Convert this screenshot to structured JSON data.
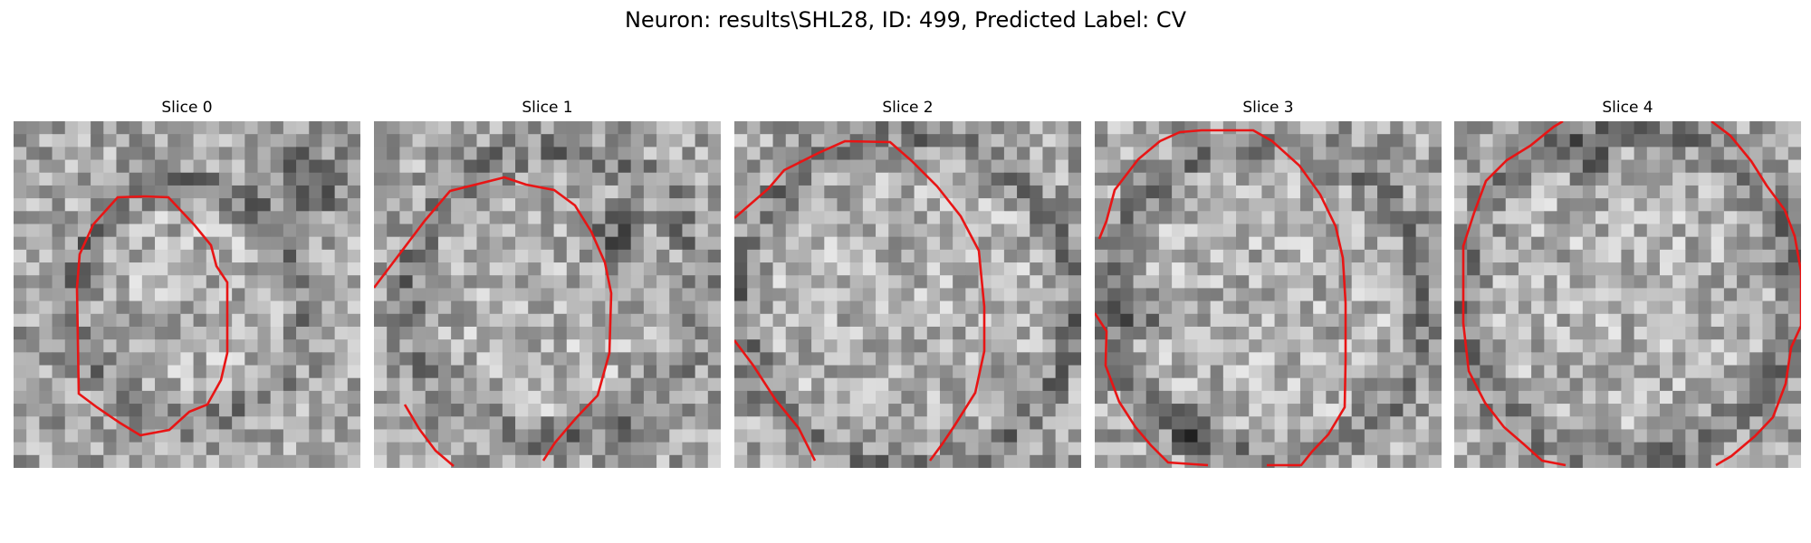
{
  "figure": {
    "title": "Neuron: results\\SHL28, ID: 499, Predicted Label: CV"
  },
  "panels": [
    {
      "title": "Slice 0",
      "seed": 11,
      "brightness": [
        "xxxxxxxxxxxxxxxxxxxxxxxxxxx",
        "xxxxxxxxxxxxxxxxxxxxxxxxxxx"
      ]
    },
    {
      "title": "Slice 1",
      "seed": 23
    },
    {
      "title": "Slice 2",
      "seed": 37
    },
    {
      "title": "Slice 3",
      "seed": 41
    },
    {
      "title": "Slice 4",
      "seed": 53
    }
  ],
  "colors": {
    "contour": "#e81515",
    "background": "#ffffff"
  }
}
